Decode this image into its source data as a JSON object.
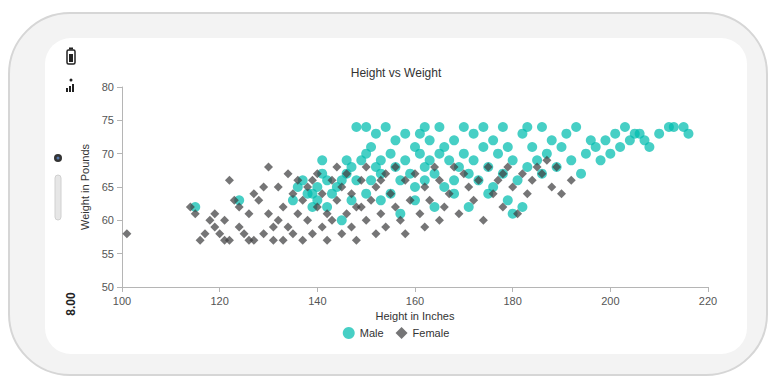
{
  "device": {
    "time": "8.00"
  },
  "chart_data": {
    "type": "scatter",
    "title": "Height vs Weight",
    "x_label": "Height in Inches",
    "y_label": "Weight in Pounds",
    "xlim": [
      100,
      220
    ],
    "xticks": [
      100,
      120,
      140,
      160,
      180,
      200,
      220
    ],
    "ylim": [
      50,
      80
    ],
    "yticks": [
      50,
      55,
      60,
      65,
      70,
      75,
      80
    ],
    "grid": false,
    "legend": "bottom",
    "series": [
      {
        "name": "Male",
        "color": "#00bdae",
        "marker": "circle",
        "values": [
          [
            115,
            62
          ],
          [
            124,
            63
          ],
          [
            135,
            63
          ],
          [
            136,
            65
          ],
          [
            137,
            66
          ],
          [
            138,
            64
          ],
          [
            139,
            62
          ],
          [
            140,
            63
          ],
          [
            140,
            65
          ],
          [
            141,
            67
          ],
          [
            141,
            69
          ],
          [
            142,
            66
          ],
          [
            143,
            64
          ],
          [
            144,
            65
          ],
          [
            145,
            66
          ],
          [
            146,
            67
          ],
          [
            147,
            68
          ],
          [
            148,
            66
          ],
          [
            149,
            69
          ],
          [
            150,
            70
          ],
          [
            150,
            74
          ],
          [
            151,
            71
          ],
          [
            151,
            66
          ],
          [
            152,
            68
          ],
          [
            153,
            69
          ],
          [
            153,
            67
          ],
          [
            154,
            74
          ],
          [
            155,
            70
          ],
          [
            155,
            64
          ],
          [
            156,
            72
          ],
          [
            156,
            68
          ],
          [
            157,
            66
          ],
          [
            158,
            73
          ],
          [
            158,
            69
          ],
          [
            159,
            67
          ],
          [
            160,
            71
          ],
          [
            160,
            65
          ],
          [
            161,
            70
          ],
          [
            161,
            73
          ],
          [
            162,
            68
          ],
          [
            162,
            66
          ],
          [
            163,
            72
          ],
          [
            163,
            69
          ],
          [
            164,
            67
          ],
          [
            165,
            70
          ],
          [
            165,
            74
          ],
          [
            166,
            71
          ],
          [
            166,
            65
          ],
          [
            167,
            69
          ],
          [
            168,
            72
          ],
          [
            168,
            66
          ],
          [
            169,
            68
          ],
          [
            170,
            74
          ],
          [
            170,
            70
          ],
          [
            171,
            67
          ],
          [
            172,
            73
          ],
          [
            172,
            69
          ],
          [
            173,
            66
          ],
          [
            174,
            71
          ],
          [
            175,
            68
          ],
          [
            176,
            72
          ],
          [
            176,
            65
          ],
          [
            177,
            70
          ],
          [
            178,
            74
          ],
          [
            178,
            67
          ],
          [
            179,
            71
          ],
          [
            180,
            69
          ],
          [
            181,
            66
          ],
          [
            182,
            73
          ],
          [
            182,
            62
          ],
          [
            183,
            68
          ],
          [
            184,
            71
          ],
          [
            185,
            69
          ],
          [
            186,
            74
          ],
          [
            186,
            67
          ],
          [
            187,
            70
          ],
          [
            188,
            72
          ],
          [
            189,
            68
          ],
          [
            190,
            71
          ],
          [
            191,
            73
          ],
          [
            192,
            69
          ],
          [
            193,
            74
          ],
          [
            194,
            67
          ],
          [
            195,
            70
          ],
          [
            196,
            72
          ],
          [
            197,
            71
          ],
          [
            198,
            69
          ],
          [
            199,
            72
          ],
          [
            200,
            70
          ],
          [
            201,
            73
          ],
          [
            202,
            71
          ],
          [
            203,
            74
          ],
          [
            204,
            72
          ],
          [
            205,
            73
          ],
          [
            206,
            73
          ],
          [
            207,
            72
          ],
          [
            208,
            71
          ],
          [
            210,
            73
          ],
          [
            212,
            74
          ],
          [
            213,
            74
          ],
          [
            215,
            74
          ],
          [
            216,
            73
          ],
          [
            145,
            60
          ],
          [
            142,
            62
          ],
          [
            139,
            64
          ],
          [
            147,
            63
          ],
          [
            150,
            64
          ],
          [
            153,
            63
          ],
          [
            157,
            61
          ],
          [
            160,
            63
          ],
          [
            164,
            62
          ],
          [
            168,
            64
          ],
          [
            171,
            62
          ],
          [
            175,
            64
          ],
          [
            179,
            63
          ],
          [
            180,
            61
          ],
          [
            148,
            74
          ],
          [
            146,
            69
          ],
          [
            152,
            73
          ],
          [
            174,
            74
          ],
          [
            183,
            74
          ],
          [
            162,
            74
          ]
        ]
      },
      {
        "name": "Female",
        "color": "#404041",
        "marker": "diamond",
        "values": [
          [
            101,
            58
          ],
          [
            114,
            62
          ],
          [
            115,
            61
          ],
          [
            116,
            57
          ],
          [
            117,
            58
          ],
          [
            118,
            60
          ],
          [
            119,
            59
          ],
          [
            119,
            61
          ],
          [
            120,
            58
          ],
          [
            121,
            60
          ],
          [
            122,
            57
          ],
          [
            122,
            66
          ],
          [
            123,
            63
          ],
          [
            124,
            59
          ],
          [
            125,
            58
          ],
          [
            126,
            57
          ],
          [
            126,
            61
          ],
          [
            127,
            64
          ],
          [
            127,
            57
          ],
          [
            128,
            63
          ],
          [
            129,
            58
          ],
          [
            130,
            61
          ],
          [
            130,
            68
          ],
          [
            131,
            59
          ],
          [
            131,
            57
          ],
          [
            132,
            60
          ],
          [
            132,
            65
          ],
          [
            133,
            62
          ],
          [
            134,
            59
          ],
          [
            134,
            67
          ],
          [
            135,
            64
          ],
          [
            135,
            58
          ],
          [
            136,
            61
          ],
          [
            136,
            66
          ],
          [
            137,
            57
          ],
          [
            137,
            63
          ],
          [
            138,
            60
          ],
          [
            138,
            65
          ],
          [
            139,
            58
          ],
          [
            140,
            62
          ],
          [
            140,
            67
          ],
          [
            141,
            59
          ],
          [
            141,
            64
          ],
          [
            142,
            61
          ],
          [
            142,
            57
          ],
          [
            143,
            66
          ],
          [
            143,
            60
          ],
          [
            144,
            63
          ],
          [
            144,
            68
          ],
          [
            145,
            58
          ],
          [
            145,
            65
          ],
          [
            146,
            61
          ],
          [
            146,
            67
          ],
          [
            147,
            59
          ],
          [
            147,
            64
          ],
          [
            148,
            62
          ],
          [
            148,
            57
          ],
          [
            149,
            66
          ],
          [
            150,
            60
          ],
          [
            150,
            68
          ],
          [
            151,
            63
          ],
          [
            152,
            58
          ],
          [
            152,
            65
          ],
          [
            153,
            61
          ],
          [
            154,
            67
          ],
          [
            154,
            59
          ],
          [
            155,
            64
          ],
          [
            156,
            62
          ],
          [
            156,
            68
          ],
          [
            157,
            60
          ],
          [
            158,
            66
          ],
          [
            158,
            58
          ],
          [
            159,
            63
          ],
          [
            160,
            67
          ],
          [
            161,
            61
          ],
          [
            162,
            59
          ],
          [
            162,
            65
          ],
          [
            163,
            63
          ],
          [
            164,
            68
          ],
          [
            165,
            60
          ],
          [
            165,
            66
          ],
          [
            166,
            62
          ],
          [
            167,
            64
          ],
          [
            168,
            68
          ],
          [
            169,
            61
          ],
          [
            170,
            67
          ],
          [
            171,
            65
          ],
          [
            172,
            63
          ],
          [
            173,
            66
          ],
          [
            174,
            60
          ],
          [
            175,
            68
          ],
          [
            176,
            64
          ],
          [
            177,
            66
          ],
          [
            178,
            67
          ],
          [
            178,
            62
          ],
          [
            179,
            68
          ],
          [
            180,
            65
          ],
          [
            181,
            61
          ],
          [
            182,
            67
          ],
          [
            183,
            64
          ],
          [
            184,
            66
          ],
          [
            185,
            68
          ],
          [
            186,
            67
          ],
          [
            187,
            69
          ],
          [
            188,
            65
          ],
          [
            189,
            68
          ],
          [
            190,
            64
          ],
          [
            192,
            66
          ],
          [
            153,
            66
          ],
          [
            149,
            62
          ],
          [
            139,
            66
          ],
          [
            133,
            57
          ],
          [
            129,
            65
          ],
          [
            124,
            62
          ],
          [
            121,
            57
          ]
        ]
      }
    ]
  }
}
